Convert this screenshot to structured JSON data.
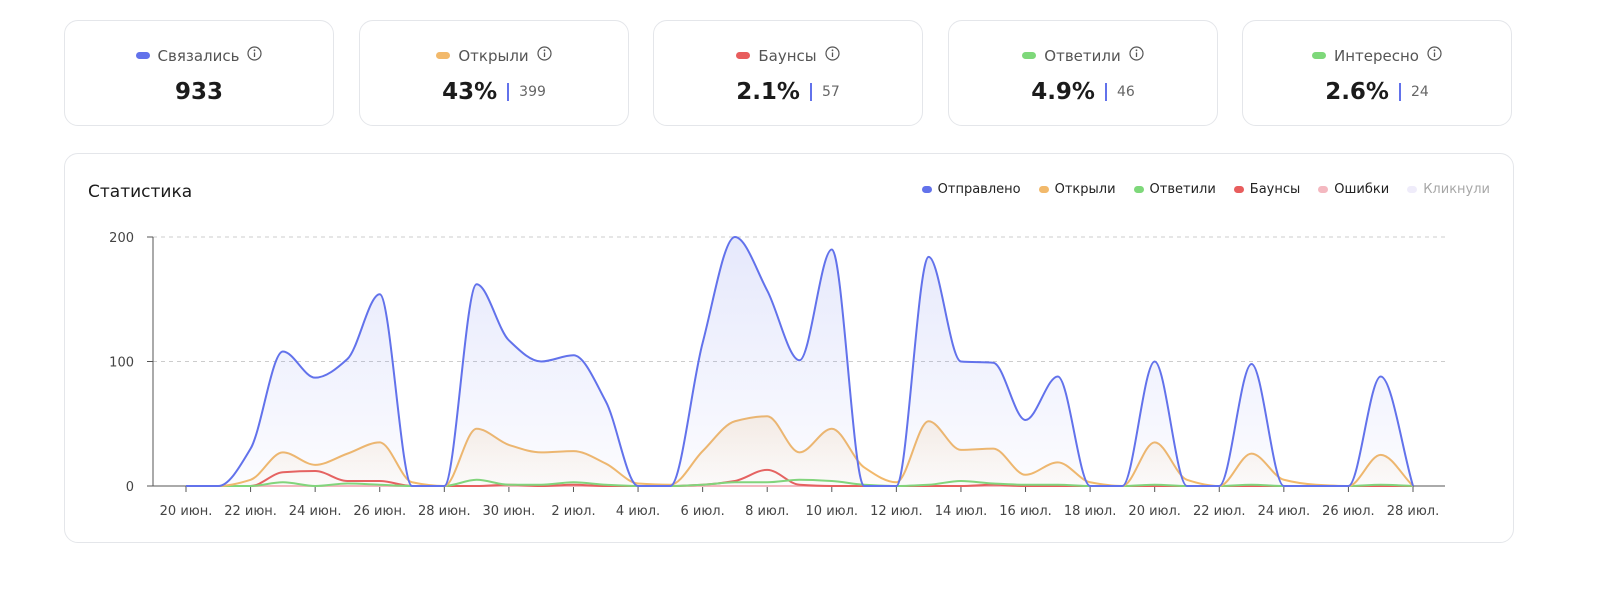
{
  "cards": [
    {
      "label": "Связались",
      "color": "#6272eb",
      "value": "933"
    },
    {
      "label": "Открыли",
      "color": "#f2b96b",
      "value": "43%",
      "secondary": "399"
    },
    {
      "label": "Баунсы",
      "color": "#e85d5d",
      "value": "2.1%",
      "secondary": "57"
    },
    {
      "label": "Ответили",
      "color": "#7ed87a",
      "value": "4.9%",
      "secondary": "46"
    },
    {
      "label": "Интересно",
      "color": "#7ed87a",
      "value": "2.6%",
      "secondary": "24"
    }
  ],
  "chart_data": {
    "type": "area",
    "title": "Статистика",
    "categories": [
      "20 июн.",
      null,
      "22 июн.",
      null,
      "24 июн.",
      null,
      "26 июн.",
      null,
      "28 июн.",
      null,
      "30 июн.",
      null,
      "2 июл.",
      null,
      "4 июл.",
      null,
      "6 июл.",
      null,
      "8 июл.",
      null,
      "10 июл.",
      null,
      "12 июл.",
      null,
      "14 июл.",
      null,
      "16 июл.",
      null,
      "18 июл.",
      null,
      "20 июл.",
      null,
      "22 июл.",
      null,
      "24 июл.",
      null,
      "26 июл.",
      null,
      "28 июл."
    ],
    "ylim": [
      0,
      200
    ],
    "yticks": [
      0,
      100,
      200
    ],
    "grid": true,
    "legend": "top-right",
    "series": [
      {
        "name": "Отправлено",
        "color": "#6272eb",
        "fill": true,
        "values": [
          0,
          0,
          30,
          108,
          87,
          102,
          154,
          0,
          0,
          162,
          117,
          100,
          105,
          68,
          0,
          0,
          115,
          200,
          157,
          101,
          190,
          0,
          0,
          184,
          100,
          99,
          53,
          88,
          0,
          0,
          100,
          0,
          0,
          98,
          0,
          0,
          0,
          88,
          0
        ]
      },
      {
        "name": "Открыли",
        "color": "#f2b96b",
        "fill": true,
        "values": [
          0,
          0,
          5,
          27,
          17,
          26,
          35,
          3,
          0,
          46,
          33,
          27,
          28,
          18,
          2,
          1,
          28,
          52,
          56,
          27,
          46,
          15,
          3,
          52,
          29,
          30,
          9,
          19,
          3,
          0,
          35,
          5,
          0,
          26,
          5,
          1,
          0,
          25,
          0
        ]
      },
      {
        "name": "Ответили",
        "color": "#7ed87a",
        "fill": false,
        "values": [
          0,
          0,
          0,
          3,
          0,
          2,
          1,
          0,
          0,
          5,
          1,
          1,
          3,
          1,
          0,
          0,
          1,
          3,
          3,
          5,
          4,
          1,
          0,
          1,
          4,
          2,
          1,
          1,
          0,
          0,
          1,
          0,
          0,
          1,
          0,
          0,
          0,
          1,
          0
        ]
      },
      {
        "name": "Баунсы",
        "color": "#e85d5d",
        "fill": false,
        "values": [
          0,
          0,
          0,
          11,
          12,
          4,
          4,
          0,
          0,
          0,
          1,
          0,
          1,
          0,
          0,
          0,
          1,
          4,
          13,
          1,
          0,
          0,
          0,
          0,
          0,
          1,
          0,
          0,
          0,
          0,
          0,
          0,
          0,
          0,
          0,
          0,
          0,
          0,
          0
        ]
      },
      {
        "name": "Ошибки",
        "color": "#f4b8c0",
        "fill": false,
        "values": [
          0,
          0,
          0,
          0,
          0,
          0,
          0,
          0,
          0,
          0,
          0,
          0,
          0,
          0,
          0,
          0,
          0,
          0,
          0,
          0,
          0,
          0,
          0,
          0,
          0,
          0,
          0,
          0,
          0,
          0,
          0,
          0,
          0,
          0,
          0,
          0,
          0,
          0,
          0
        ]
      },
      {
        "name": "Кликнули",
        "color": "#d9d2f5",
        "fill": false,
        "hidden": true,
        "values": [
          0,
          0,
          0,
          0,
          0,
          0,
          0,
          0,
          0,
          0,
          0,
          0,
          0,
          0,
          0,
          0,
          0,
          0,
          0,
          0,
          0,
          0,
          0,
          0,
          0,
          0,
          0,
          0,
          0,
          0,
          0,
          0,
          0,
          0,
          0,
          0,
          0,
          0,
          0
        ]
      }
    ]
  }
}
